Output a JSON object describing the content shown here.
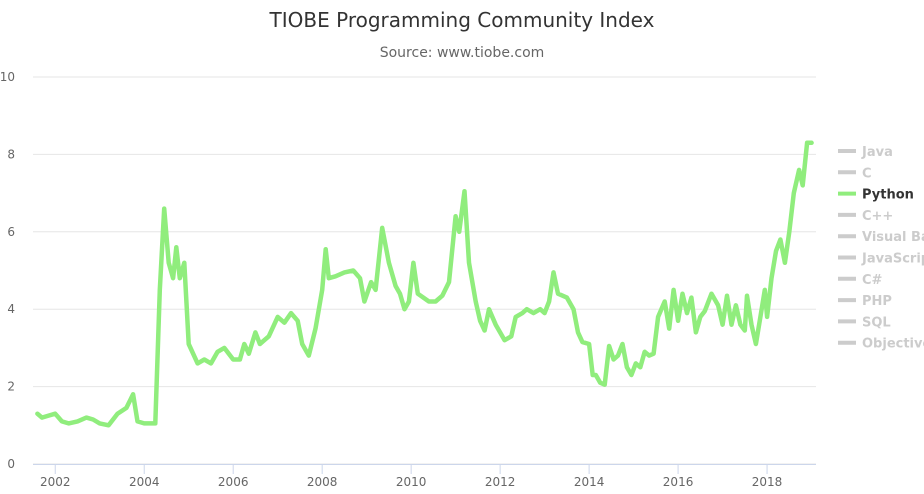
{
  "chart_data": {
    "type": "line",
    "title": "TIOBE Programming Community Index",
    "subtitle": "Source: www.tiobe.com",
    "xlabel": "",
    "ylabel": "",
    "xlim": [
      2001.5,
      2019.1
    ],
    "ylim": [
      0,
      10
    ],
    "y_ticks": [
      "0",
      "2",
      "4",
      "6",
      "8",
      "10"
    ],
    "x_ticks": [
      "2002",
      "2004",
      "2006",
      "2008",
      "2010",
      "2012",
      "2014",
      "2016",
      "2018"
    ],
    "grid": true,
    "legend_position": "right",
    "legend": [
      {
        "name": "Java",
        "active": false
      },
      {
        "name": "C",
        "active": false
      },
      {
        "name": "Python",
        "active": true
      },
      {
        "name": "C++",
        "active": false
      },
      {
        "name": "Visual Ba",
        "active": false
      },
      {
        "name": "JavaScript",
        "active": false
      },
      {
        "name": "C#",
        "active": false
      },
      {
        "name": "PHP",
        "active": false
      },
      {
        "name": "SQL",
        "active": false
      },
      {
        "name": "Objective",
        "active": false
      }
    ],
    "series": [
      {
        "name": "Python",
        "color": "#90ed7d",
        "points": [
          [
            2001.6,
            1.3
          ],
          [
            2001.7,
            1.2
          ],
          [
            2001.85,
            1.25
          ],
          [
            2002.0,
            1.3
          ],
          [
            2002.15,
            1.1
          ],
          [
            2002.3,
            1.05
          ],
          [
            2002.5,
            1.1
          ],
          [
            2002.7,
            1.2
          ],
          [
            2002.85,
            1.15
          ],
          [
            2003.0,
            1.05
          ],
          [
            2003.2,
            1.0
          ],
          [
            2003.4,
            1.3
          ],
          [
            2003.6,
            1.45
          ],
          [
            2003.75,
            1.8
          ],
          [
            2003.85,
            1.1
          ],
          [
            2004.0,
            1.05
          ],
          [
            2004.25,
            1.05
          ],
          [
            2004.35,
            4.5
          ],
          [
            2004.45,
            6.6
          ],
          [
            2004.55,
            5.2
          ],
          [
            2004.65,
            4.8
          ],
          [
            2004.72,
            5.6
          ],
          [
            2004.8,
            4.8
          ],
          [
            2004.9,
            5.2
          ],
          [
            2005.0,
            3.1
          ],
          [
            2005.2,
            2.6
          ],
          [
            2005.35,
            2.7
          ],
          [
            2005.5,
            2.6
          ],
          [
            2005.65,
            2.9
          ],
          [
            2005.8,
            3.0
          ],
          [
            2006.0,
            2.7
          ],
          [
            2006.15,
            2.7
          ],
          [
            2006.25,
            3.1
          ],
          [
            2006.35,
            2.85
          ],
          [
            2006.5,
            3.4
          ],
          [
            2006.6,
            3.1
          ],
          [
            2006.8,
            3.3
          ],
          [
            2007.0,
            3.8
          ],
          [
            2007.15,
            3.65
          ],
          [
            2007.3,
            3.9
          ],
          [
            2007.45,
            3.7
          ],
          [
            2007.55,
            3.1
          ],
          [
            2007.7,
            2.8
          ],
          [
            2007.85,
            3.5
          ],
          [
            2008.0,
            4.5
          ],
          [
            2008.08,
            5.55
          ],
          [
            2008.15,
            4.8
          ],
          [
            2008.3,
            4.85
          ],
          [
            2008.5,
            4.95
          ],
          [
            2008.7,
            5.0
          ],
          [
            2008.85,
            4.8
          ],
          [
            2008.95,
            4.2
          ],
          [
            2009.1,
            4.7
          ],
          [
            2009.2,
            4.5
          ],
          [
            2009.35,
            6.1
          ],
          [
            2009.5,
            5.2
          ],
          [
            2009.65,
            4.6
          ],
          [
            2009.75,
            4.4
          ],
          [
            2009.85,
            4.0
          ],
          [
            2009.95,
            4.2
          ],
          [
            2010.05,
            5.2
          ],
          [
            2010.15,
            4.4
          ],
          [
            2010.4,
            4.2
          ],
          [
            2010.55,
            4.2
          ],
          [
            2010.7,
            4.35
          ],
          [
            2010.85,
            4.7
          ],
          [
            2011.0,
            6.4
          ],
          [
            2011.08,
            6.0
          ],
          [
            2011.2,
            7.05
          ],
          [
            2011.3,
            5.2
          ],
          [
            2011.45,
            4.2
          ],
          [
            2011.55,
            3.7
          ],
          [
            2011.65,
            3.45
          ],
          [
            2011.75,
            4.0
          ],
          [
            2011.9,
            3.6
          ],
          [
            2012.0,
            3.4
          ],
          [
            2012.1,
            3.2
          ],
          [
            2012.25,
            3.3
          ],
          [
            2012.35,
            3.8
          ],
          [
            2012.5,
            3.9
          ],
          [
            2012.6,
            4.0
          ],
          [
            2012.75,
            3.9
          ],
          [
            2012.9,
            4.0
          ],
          [
            2013.0,
            3.9
          ],
          [
            2013.1,
            4.2
          ],
          [
            2013.2,
            4.95
          ],
          [
            2013.3,
            4.4
          ],
          [
            2013.5,
            4.3
          ],
          [
            2013.65,
            4.0
          ],
          [
            2013.75,
            3.4
          ],
          [
            2013.85,
            3.15
          ],
          [
            2014.0,
            3.1
          ],
          [
            2014.08,
            2.3
          ],
          [
            2014.15,
            2.3
          ],
          [
            2014.25,
            2.1
          ],
          [
            2014.35,
            2.05
          ],
          [
            2014.45,
            3.05
          ],
          [
            2014.55,
            2.7
          ],
          [
            2014.65,
            2.8
          ],
          [
            2014.75,
            3.1
          ],
          [
            2014.85,
            2.5
          ],
          [
            2014.95,
            2.3
          ],
          [
            2015.05,
            2.6
          ],
          [
            2015.15,
            2.5
          ],
          [
            2015.25,
            2.9
          ],
          [
            2015.35,
            2.8
          ],
          [
            2015.45,
            2.85
          ],
          [
            2015.55,
            3.8
          ],
          [
            2015.7,
            4.2
          ],
          [
            2015.8,
            3.5
          ],
          [
            2015.9,
            4.5
          ],
          [
            2016.0,
            3.7
          ],
          [
            2016.1,
            4.4
          ],
          [
            2016.2,
            3.9
          ],
          [
            2016.3,
            4.3
          ],
          [
            2016.4,
            3.4
          ],
          [
            2016.5,
            3.8
          ],
          [
            2016.6,
            3.95
          ],
          [
            2016.75,
            4.4
          ],
          [
            2016.9,
            4.1
          ],
          [
            2017.0,
            3.6
          ],
          [
            2017.1,
            4.35
          ],
          [
            2017.2,
            3.6
          ],
          [
            2017.3,
            4.1
          ],
          [
            2017.4,
            3.6
          ],
          [
            2017.5,
            3.45
          ],
          [
            2017.55,
            4.35
          ],
          [
            2017.65,
            3.6
          ],
          [
            2017.75,
            3.1
          ],
          [
            2017.85,
            3.8
          ],
          [
            2017.95,
            4.5
          ],
          [
            2018.0,
            3.8
          ],
          [
            2018.1,
            4.8
          ],
          [
            2018.2,
            5.5
          ],
          [
            2018.3,
            5.8
          ],
          [
            2018.4,
            5.2
          ],
          [
            2018.5,
            6.0
          ],
          [
            2018.6,
            7.0
          ],
          [
            2018.72,
            7.6
          ],
          [
            2018.8,
            7.2
          ],
          [
            2018.9,
            8.3
          ],
          [
            2019.0,
            8.3
          ]
        ]
      }
    ]
  }
}
